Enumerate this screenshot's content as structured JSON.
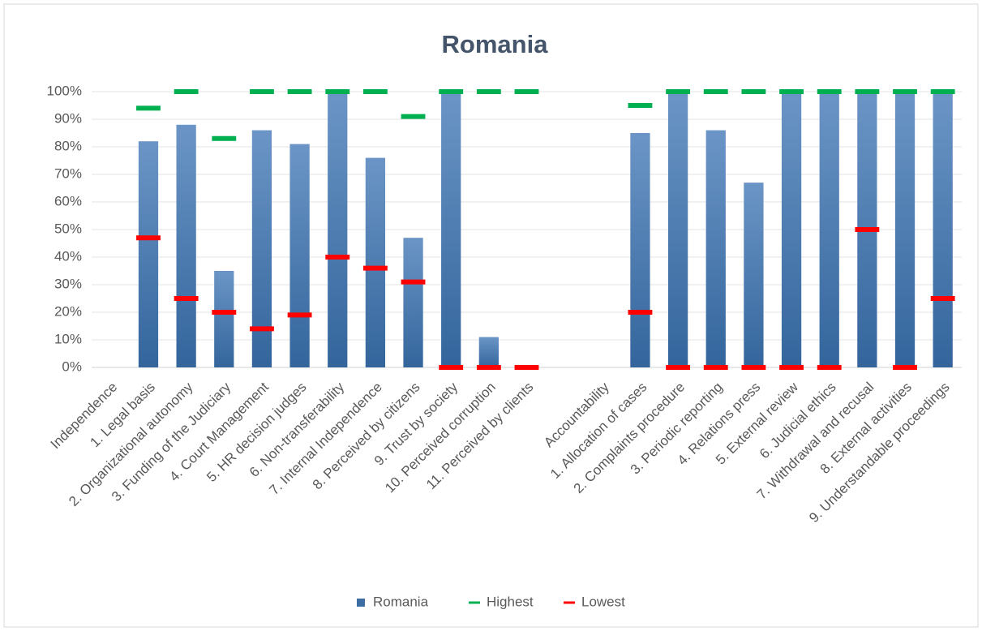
{
  "chart_data": {
    "type": "bar",
    "title": "Romania",
    "categories": [
      "Independence",
      "1. Legal basis",
      "2. Organizational autonomy",
      "3. Funding of the Judiciary",
      "4. Court Management",
      "5. HR decision judges",
      "6. Non-transferability",
      "7. Internal Independence",
      "8. Perceived by citizens",
      "9. Trust by society",
      "10. Perceived corruption",
      "11. Perceived by clients",
      null,
      "Accountability",
      "1. Allocation of cases",
      "2. Complaints procedure",
      "3. Periodic reporting",
      "4. Relations press",
      "5. External review",
      "6. Judicial ethics",
      "7. Withdrawal and recusal",
      "8. External activities",
      "9. Understandable proceedings"
    ],
    "series": [
      {
        "name": "Romania",
        "color": "#3c6ea4",
        "mark": "bar",
        "values": [
          null,
          82,
          88,
          35,
          86,
          81,
          100,
          76,
          47,
          100,
          11,
          null,
          null,
          null,
          85,
          100,
          86,
          67,
          100,
          100,
          100,
          100,
          100
        ]
      },
      {
        "name": "Highest",
        "color": "#00b050",
        "mark": "dash",
        "values": [
          null,
          94,
          100,
          83,
          100,
          100,
          100,
          100,
          91,
          100,
          100,
          100,
          null,
          null,
          95,
          100,
          100,
          100,
          100,
          100,
          100,
          100,
          100
        ]
      },
      {
        "name": "Lowest",
        "color": "#ff0000",
        "mark": "dash",
        "values": [
          null,
          47,
          25,
          20,
          14,
          19,
          40,
          36,
          31,
          0,
          0,
          0,
          null,
          null,
          20,
          0,
          0,
          0,
          0,
          0,
          50,
          0,
          25
        ]
      }
    ],
    "ylim": [
      0,
      100
    ],
    "yticks": [
      {
        "value": 0,
        "label": "0%"
      },
      {
        "value": 10,
        "label": "10%"
      },
      {
        "value": 20,
        "label": "20%"
      },
      {
        "value": 30,
        "label": "30%"
      },
      {
        "value": 40,
        "label": "40%"
      },
      {
        "value": 50,
        "label": "50%"
      },
      {
        "value": 60,
        "label": "60%"
      },
      {
        "value": 70,
        "label": "70%"
      },
      {
        "value": 80,
        "label": "80%"
      },
      {
        "value": 90,
        "label": "90%"
      },
      {
        "value": 100,
        "label": "100%"
      }
    ],
    "grid": true,
    "legend": "bottom"
  }
}
